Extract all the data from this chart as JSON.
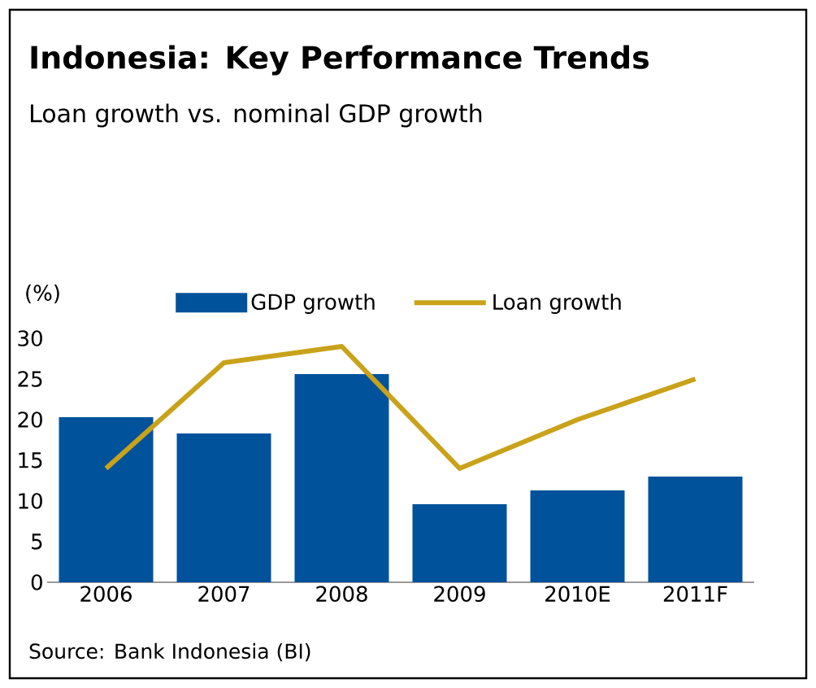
{
  "chart_data": {
    "type": "bar",
    "title": "Indonesia: Key Performance Trends",
    "subtitle": "Loan growth vs. nominal GDP growth",
    "ylabel": "(%)",
    "categories": [
      "2006",
      "2007",
      "2008",
      "2009",
      "2010E",
      "2011F"
    ],
    "series": [
      {
        "name": "GDP growth",
        "color": "#00529b",
        "values": [
          20.3,
          18.3,
          25.6,
          9.6,
          11.3,
          13.0
        ]
      },
      {
        "name": "Loan growth",
        "type": "line",
        "color": "#c9a21a",
        "values": [
          14,
          27,
          29,
          14,
          20,
          25
        ]
      }
    ],
    "ylim": [
      0,
      30
    ],
    "yticks": [
      0,
      5,
      10,
      15,
      20,
      25,
      30
    ],
    "legend": "top",
    "grid": false,
    "annotations": [
      "Source: Bank Indonesia (BI)"
    ]
  }
}
